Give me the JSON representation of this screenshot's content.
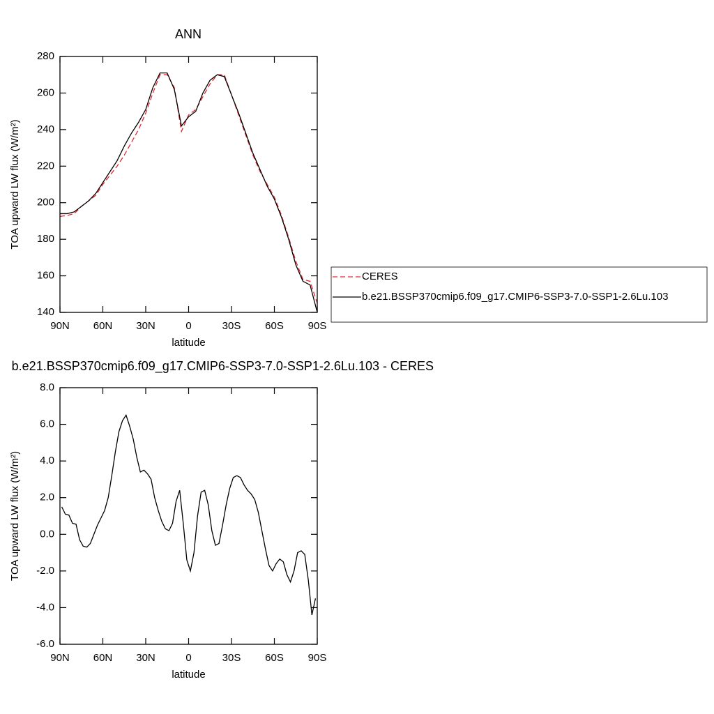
{
  "chart_data": [
    {
      "type": "line",
      "title": "ANN",
      "xlabel": "latitude",
      "ylabel": "TOA upward LW flux (W/m²)",
      "x": [
        90,
        85,
        80,
        75,
        70,
        65,
        60,
        55,
        50,
        45,
        40,
        35,
        30,
        25,
        20,
        15,
        10,
        5,
        0,
        -5,
        -10,
        -15,
        -20,
        -25,
        -30,
        -35,
        -40,
        -45,
        -50,
        -55,
        -60,
        -65,
        -70,
        -75,
        -80,
        -85,
        -90
      ],
      "series": [
        {
          "name": "CERES",
          "color": "#e8242b",
          "linestyle": "dashed",
          "values": [
            192.5,
            193,
            194,
            198,
            201,
            204,
            210,
            215,
            220,
            226,
            233,
            240,
            249,
            260,
            270,
            270,
            263,
            239,
            248,
            251,
            258,
            265,
            270,
            270,
            259,
            248,
            237,
            226,
            217,
            210,
            203,
            193,
            181,
            168,
            158,
            157,
            145
          ]
        },
        {
          "name": "b.e21.BSSP370cmip6.f09_g17.CMIP6-SSP3-7.0-SSP1-2.6Lu.103",
          "color": "#000000",
          "linestyle": "solid",
          "values": [
            194,
            194,
            195,
            198,
            201,
            205,
            211,
            217,
            223,
            231,
            238,
            244,
            251,
            263,
            271,
            271,
            262,
            242,
            247,
            250,
            260,
            267,
            270,
            269,
            259,
            249,
            238,
            227,
            218,
            209,
            202,
            192,
            180,
            166,
            157,
            155,
            140
          ]
        }
      ],
      "xlim": [
        90,
        -90
      ],
      "xticks": [
        {
          "value": 90,
          "label": "90N"
        },
        {
          "value": 60,
          "label": "60N"
        },
        {
          "value": 30,
          "label": "30N"
        },
        0,
        {
          "value": -30,
          "label": "30S"
        },
        {
          "value": -60,
          "label": "60S"
        },
        {
          "value": -90,
          "label": "90S"
        }
      ],
      "ylim": [
        140,
        280
      ],
      "yticks": [
        140,
        160,
        180,
        200,
        220,
        240,
        260,
        280
      ],
      "legend": "right"
    },
    {
      "type": "line",
      "title": "b.e21.BSSP370cmip6.f09_g17.CMIP6-SSP3-7.0-SSP1-2.6Lu.103 - CERES",
      "xlabel": "latitude",
      "ylabel": "TOA upward LW flux (W/m²)",
      "x": [
        88.75,
        86.25,
        83.75,
        81.25,
        78.75,
        76.25,
        73.75,
        71.25,
        68.75,
        66.25,
        63.75,
        61.25,
        58.75,
        56.25,
        53.75,
        51.25,
        48.75,
        46.25,
        43.75,
        41.25,
        38.75,
        36.25,
        33.75,
        31.25,
        28.75,
        26.25,
        23.75,
        21.25,
        18.75,
        16.25,
        13.75,
        11.25,
        8.75,
        6.25,
        3.75,
        1.25,
        -1.25,
        -3.75,
        -6.25,
        -8.75,
        -11.25,
        -13.75,
        -16.25,
        -18.75,
        -21.25,
        -23.75,
        -26.25,
        -28.75,
        -31.25,
        -33.75,
        -36.25,
        -38.75,
        -41.25,
        -43.75,
        -46.25,
        -48.75,
        -51.25,
        -53.75,
        -56.25,
        -58.75,
        -61.25,
        -63.75,
        -66.25,
        -68.75,
        -71.25,
        -73.75,
        -76.25,
        -78.75,
        -81.25,
        -83.75,
        -86.25,
        -88.75
      ],
      "series": [
        {
          "color": "#000000",
          "linestyle": "solid",
          "values": [
            1.5,
            1.1,
            1.05,
            0.6,
            0.55,
            -0.3,
            -0.65,
            -0.7,
            -0.5,
            0.0,
            0.5,
            0.9,
            1.3,
            2.0,
            3.2,
            4.5,
            5.6,
            6.2,
            6.5,
            5.9,
            5.2,
            4.2,
            3.4,
            3.5,
            3.3,
            3.0,
            2.0,
            1.3,
            0.7,
            0.3,
            0.2,
            0.6,
            1.8,
            2.4,
            0.6,
            -1.4,
            -2.0,
            -1.0,
            1.0,
            2.3,
            2.4,
            1.6,
            0.2,
            -0.6,
            -0.5,
            0.5,
            1.6,
            2.5,
            3.1,
            3.2,
            3.1,
            2.7,
            2.4,
            2.2,
            1.9,
            1.2,
            0.2,
            -0.8,
            -1.7,
            -2.0,
            -1.6,
            -1.35,
            -1.5,
            -2.2,
            -2.6,
            -2.0,
            -1.0,
            -0.9,
            -1.1,
            -2.5,
            -4.4,
            -3.5
          ]
        }
      ],
      "xlim": [
        90,
        -90
      ],
      "xticks": [
        {
          "value": 90,
          "label": "90N"
        },
        {
          "value": 60,
          "label": "60N"
        },
        {
          "value": 30,
          "label": "30N"
        },
        0,
        {
          "value": -30,
          "label": "30S"
        },
        {
          "value": -60,
          "label": "60S"
        },
        {
          "value": -90,
          "label": "90S"
        }
      ],
      "ylim": [
        -6,
        8
      ],
      "yticks": [
        {
          "value": -6,
          "label": "-6.0"
        },
        {
          "value": -4,
          "label": "-4.0"
        },
        {
          "value": -2,
          "label": "-2.0"
        },
        {
          "value": 0,
          "label": "0.0"
        },
        {
          "value": 2,
          "label": "2.0"
        },
        {
          "value": 4,
          "label": "4.0"
        },
        {
          "value": 6,
          "label": "6.0"
        },
        {
          "value": 8,
          "label": "8.0"
        }
      ]
    }
  ]
}
